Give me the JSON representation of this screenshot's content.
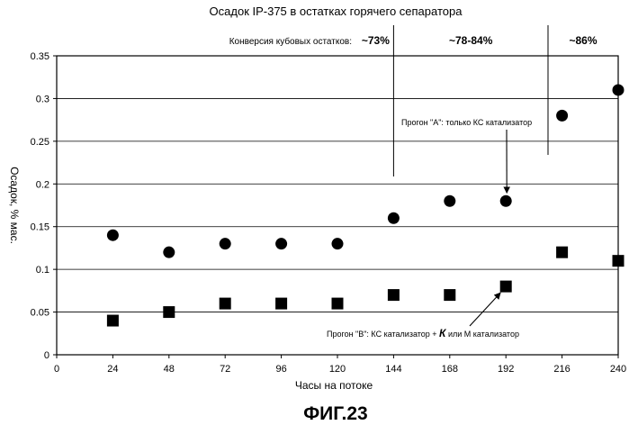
{
  "chart_data": {
    "type": "scatter",
    "title": "Осадок IP-375 в остатках горячего сепаратора",
    "xlabel": "Часы на потоке",
    "ylabel": "Осадок, % мас.",
    "xlim": [
      0,
      240
    ],
    "ylim": [
      0,
      0.35
    ],
    "x_ticks": [
      "0",
      "24",
      "48",
      "72",
      "96",
      "120",
      "144",
      "168",
      "192",
      "216",
      "240"
    ],
    "y_ticks": [
      "0",
      "0.05",
      "0.1",
      "0.15",
      "0.2",
      "0.25",
      "0.3",
      "0.35"
    ],
    "grid": "horizontal",
    "series": [
      {
        "marker": "circle",
        "x": [
          24,
          48,
          72,
          96,
          120,
          144,
          168,
          192,
          216,
          240
        ],
        "y": [
          0.14,
          0.12,
          0.13,
          0.13,
          0.13,
          0.16,
          0.18,
          0.18,
          0.28,
          0.31
        ]
      },
      {
        "marker": "square",
        "x": [
          24,
          48,
          72,
          96,
          120,
          144,
          168,
          192,
          216,
          240
        ],
        "y": [
          0.04,
          0.05,
          0.06,
          0.06,
          0.06,
          0.07,
          0.07,
          0.08,
          0.12,
          0.11
        ]
      }
    ],
    "conversion": {
      "label": "Конверсия кубовых остатков:",
      "regions": [
        "~73%",
        "~78-84%",
        "~86%"
      ],
      "dividers_x": [
        144,
        210
      ]
    },
    "annotations": [
      {
        "text_parts": [
          "Прогон \"А\": только КС катализатор"
        ],
        "target_x": 192,
        "target_y": 0.18
      },
      {
        "text_parts": [
          "Прогон \"В\": КС катализатор + ",
          "К",
          " или М катализатор"
        ],
        "target_x": 192,
        "target_y": 0.08
      }
    ]
  },
  "figure_caption": "ФИГ.23"
}
